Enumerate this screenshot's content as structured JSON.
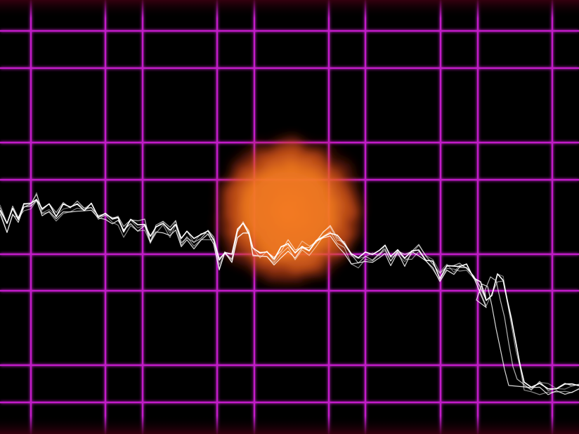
{
  "scene": {
    "background_color": "#000000",
    "grid": {
      "color": "#c21ec8",
      "glow_color": "#ff3cff"
    },
    "sun": {
      "core_color": "#f47a20",
      "mid_color": "#e0501a",
      "edge_color": "#8a1010"
    },
    "waveform": {
      "color": "#ffffff",
      "trace_count": 5
    }
  }
}
